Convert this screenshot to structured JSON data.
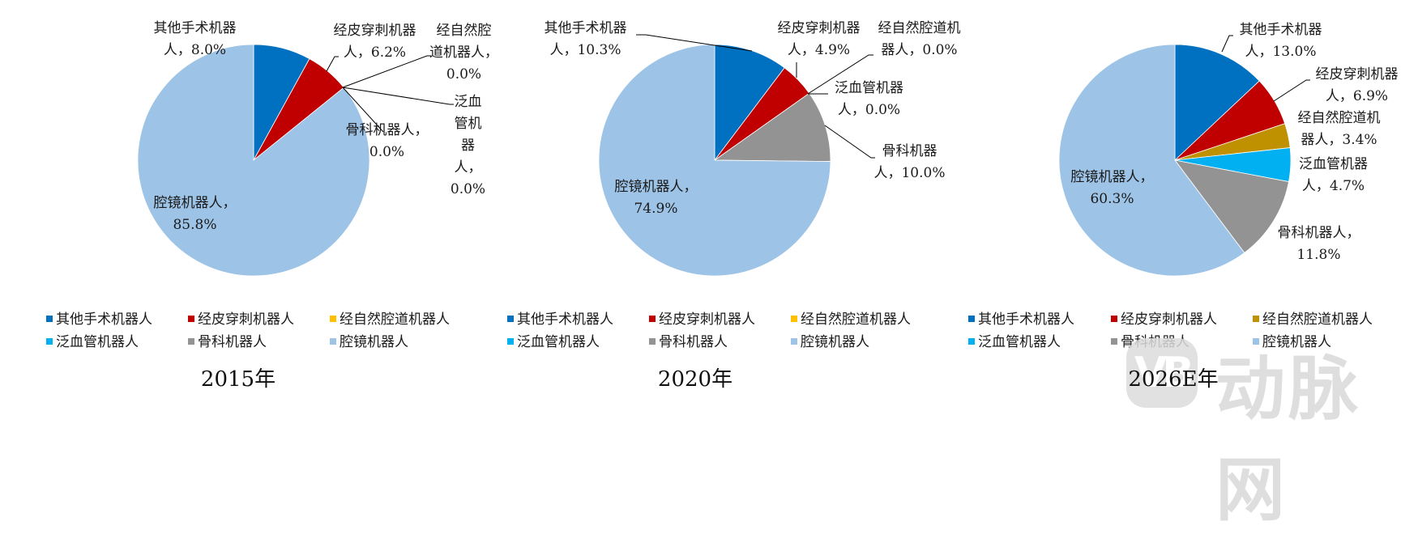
{
  "chart_data": [
    {
      "type": "pie",
      "title": "2015年",
      "categories": [
        "其他手术机器人",
        "经皮穿刺机器人",
        "经自然腔道机器人",
        "泛血管机器人",
        "骨科机器人",
        "腔镜机器人"
      ],
      "values": [
        8.0,
        6.2,
        0.0,
        0.0,
        0.0,
        85.8
      ],
      "value_labels": [
        "8.0%",
        "6.2%",
        "0.0%",
        "0.0%",
        "0.0%",
        "85.8%"
      ],
      "colors": [
        "#0070c0",
        "#c00000",
        "#ffc000",
        "#00b0f0",
        "#939393",
        "#9dc3e6"
      ],
      "legend_position": "bottom"
    },
    {
      "type": "pie",
      "title": "2020年",
      "categories": [
        "其他手术机器人",
        "经皮穿刺机器人",
        "经自然腔道机器人",
        "泛血管机器人",
        "骨科机器人",
        "腔镜机器人"
      ],
      "values": [
        10.3,
        4.9,
        0.0,
        0.0,
        10.0,
        74.9
      ],
      "value_labels": [
        "10.3%",
        "4.9%",
        "0.0%",
        "0.0%",
        "10.0%",
        "74.9%"
      ],
      "colors": [
        "#0070c0",
        "#c00000",
        "#ffc000",
        "#00b0f0",
        "#939393",
        "#9dc3e6"
      ],
      "legend_position": "bottom"
    },
    {
      "type": "pie",
      "title": "2026E年",
      "categories": [
        "其他手术机器人",
        "经皮穿刺机器人",
        "经自然腔道机器人",
        "泛血管机器人",
        "骨科机器人",
        "腔镜机器人"
      ],
      "values": [
        13.0,
        6.9,
        3.4,
        4.7,
        11.8,
        60.3
      ],
      "value_labels": [
        "13.0%",
        "6.9%",
        "3.4%",
        "4.7%",
        "11.8%",
        "60.3%"
      ],
      "colors": [
        "#0070c0",
        "#c00000",
        "#bf9000",
        "#00b0f0",
        "#939393",
        "#9dc3e6"
      ],
      "legend_position": "bottom"
    }
  ],
  "charts": [
    {
      "title": "2015年",
      "labels": {
        "other": [
          "其他手术机器",
          "人，8.0%"
        ],
        "percutaneous": [
          "经皮穿刺机器",
          "人，6.2%"
        ],
        "natural_orifice": [
          "经自然腔",
          "道机器人，",
          "0.0%"
        ],
        "vascular": [
          "泛血",
          "管机",
          "器",
          "人，",
          "0.0%"
        ],
        "orthopedic": [
          "骨科机器人，",
          "0.0%"
        ],
        "laparoscopic": [
          "腔镜机器人，",
          "85.8%"
        ]
      }
    },
    {
      "title": "2020年",
      "labels": {
        "other": [
          "其他手术机器",
          "人，10.3%"
        ],
        "percutaneous": [
          "经皮穿刺机器",
          "人，4.9%"
        ],
        "natural_orifice": [
          "经自然腔道机",
          "器人，0.0%"
        ],
        "vascular": [
          "泛血管机器",
          "人，0.0%"
        ],
        "orthopedic": [
          "骨科机器",
          "人，10.0%"
        ],
        "laparoscopic": [
          "腔镜机器人，",
          "74.9%"
        ]
      }
    },
    {
      "title": "2026E年",
      "labels": {
        "other": [
          "其他手术机器",
          "人，13.0%"
        ],
        "percutaneous": [
          "经皮穿刺机器",
          "人，6.9%"
        ],
        "natural_orifice": [
          "经自然腔道机",
          "器人，3.4%"
        ],
        "vascular": [
          "泛血管机器",
          "人，4.7%"
        ],
        "orthopedic": [
          "骨科机器人，",
          "11.8%"
        ],
        "laparoscopic": [
          "腔镜机器人，",
          "60.3%"
        ]
      }
    }
  ],
  "legend": {
    "items": [
      "其他手术机器人",
      "经皮穿刺机器人",
      "经自然腔道机器人",
      "泛血管机器人",
      "骨科机器人",
      "腔镜机器人"
    ]
  },
  "watermark": {
    "logo_text": "VB",
    "text": "动脉网"
  }
}
